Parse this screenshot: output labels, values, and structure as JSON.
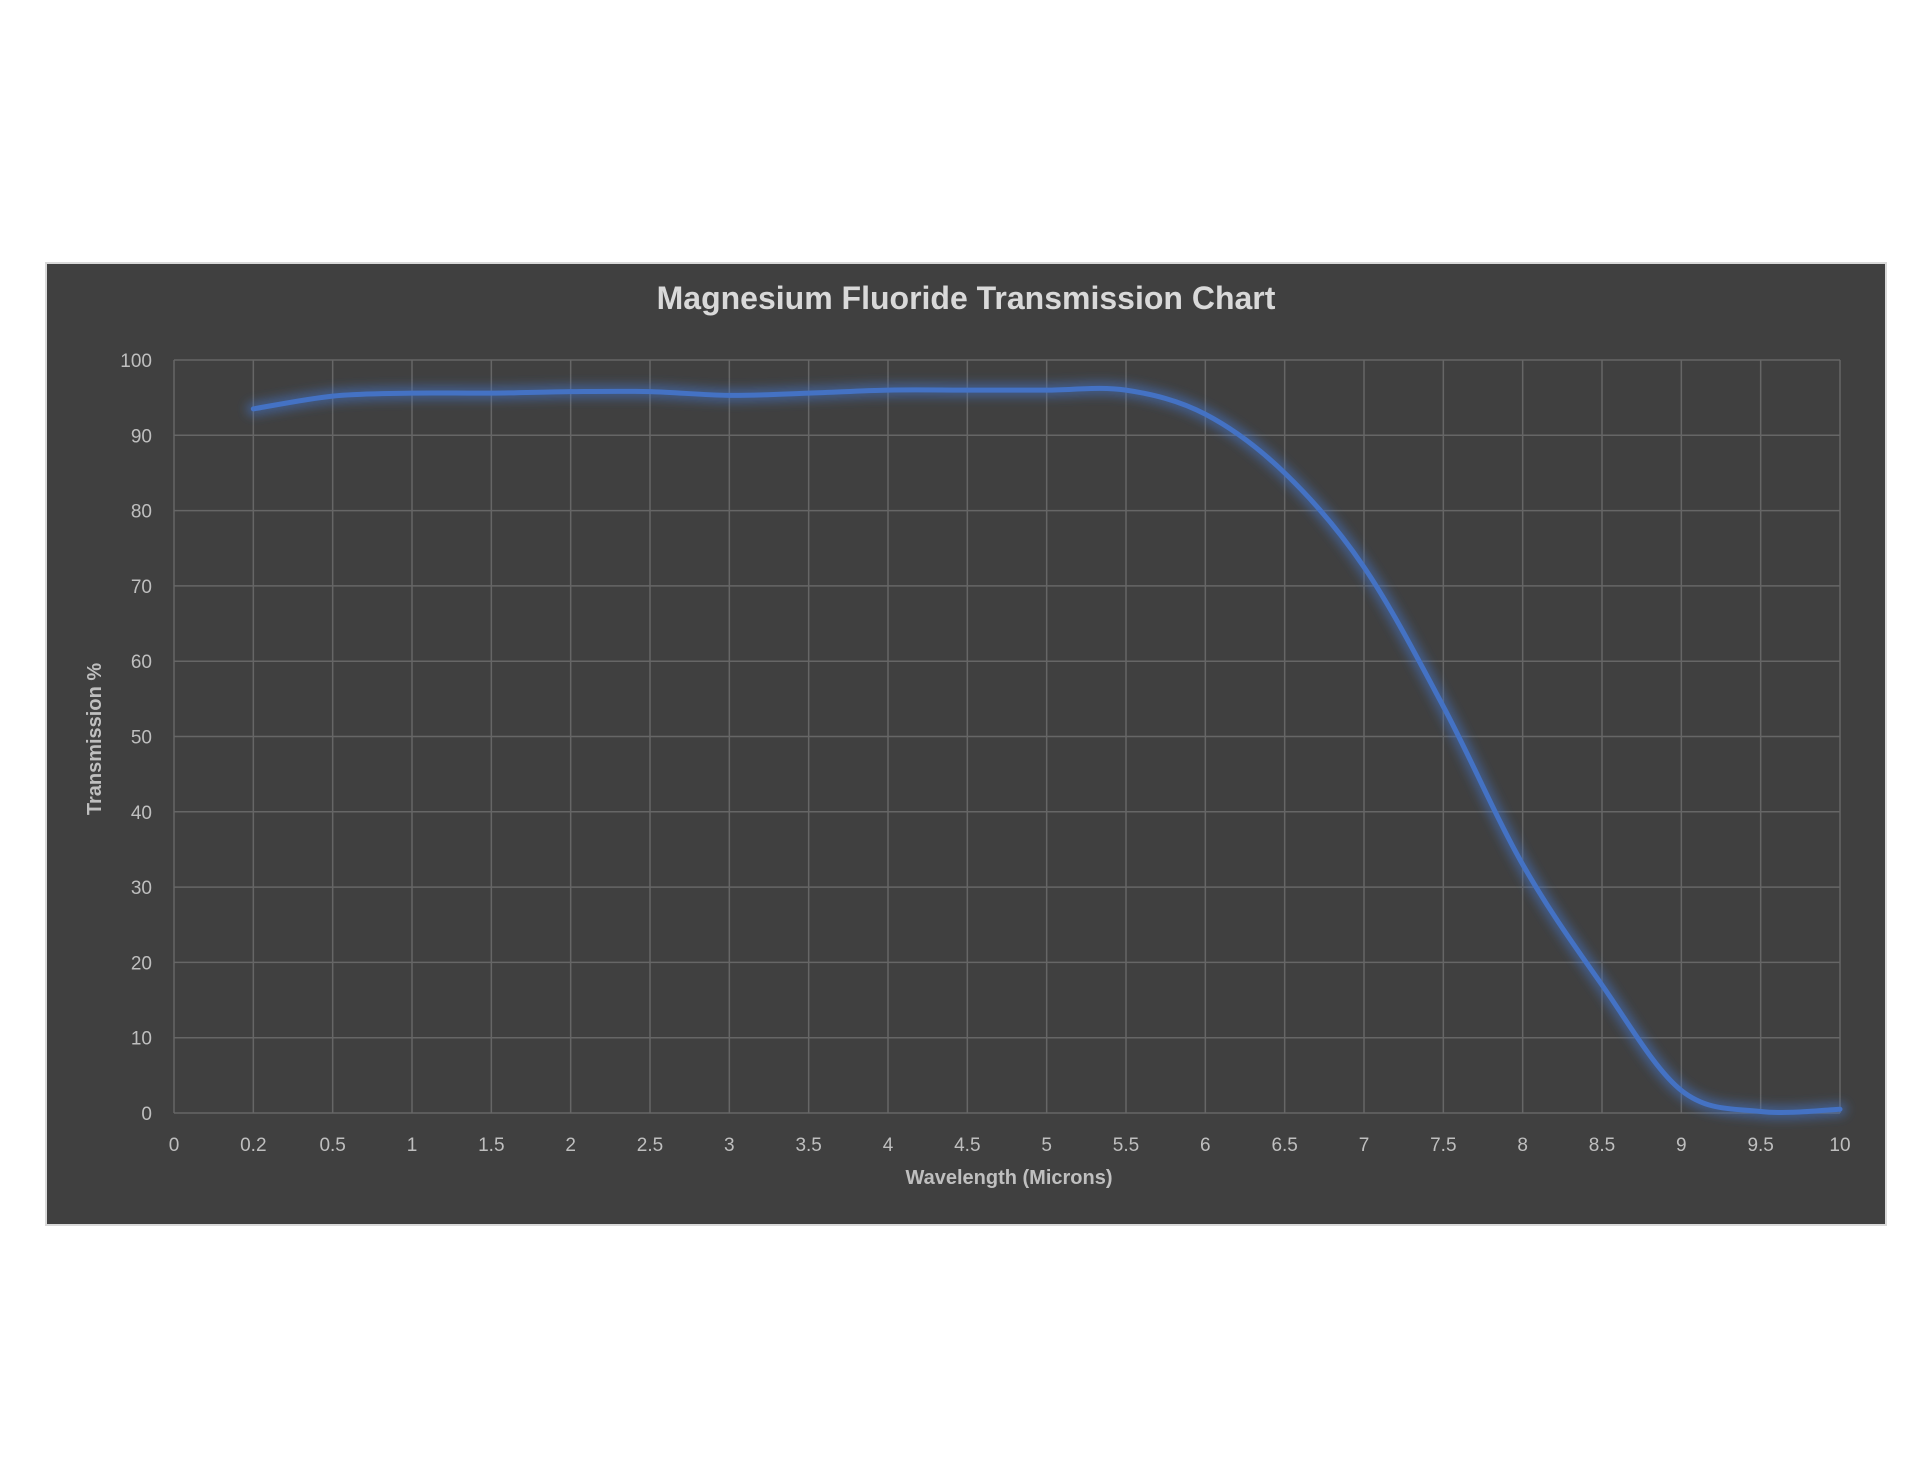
{
  "chart_data": {
    "type": "line",
    "title": "Magnesium Fluoride Transmission Chart",
    "xlabel": "Wavelength (Microns)",
    "ylabel": "Transmission %",
    "x_ticks": [
      "0",
      "0.2",
      "0.5",
      "1",
      "1.5",
      "2",
      "2.5",
      "3",
      "3.5",
      "4",
      "4.5",
      "5",
      "5.5",
      "6",
      "6.5",
      "7",
      "7.5",
      "8",
      "8.5",
      "9",
      "9.5",
      "10"
    ],
    "y_ticks": [
      "0",
      "10",
      "20",
      "30",
      "40",
      "50",
      "60",
      "70",
      "80",
      "90",
      "100"
    ],
    "ylim": [
      0,
      100
    ],
    "grid": true,
    "legend": "none",
    "line_color": "#4472c4",
    "background_color": "#404040",
    "series": [
      {
        "x": [
          "0.2",
          "0.5",
          "1",
          "1.5",
          "2",
          "2.5",
          "3",
          "3.5",
          "4",
          "4.5",
          "5",
          "5.5",
          "6",
          "6.5",
          "7",
          "7.5",
          "8",
          "8.5",
          "9",
          "9.5",
          "10"
        ],
        "values": [
          93.5,
          95.2,
          95.6,
          95.6,
          95.8,
          95.8,
          95.3,
          95.6,
          96.0,
          96.0,
          96.0,
          96.0,
          92.8,
          85.0,
          72.5,
          54.0,
          33.0,
          17.0,
          3.0,
          0.2,
          0.5
        ]
      }
    ]
  }
}
